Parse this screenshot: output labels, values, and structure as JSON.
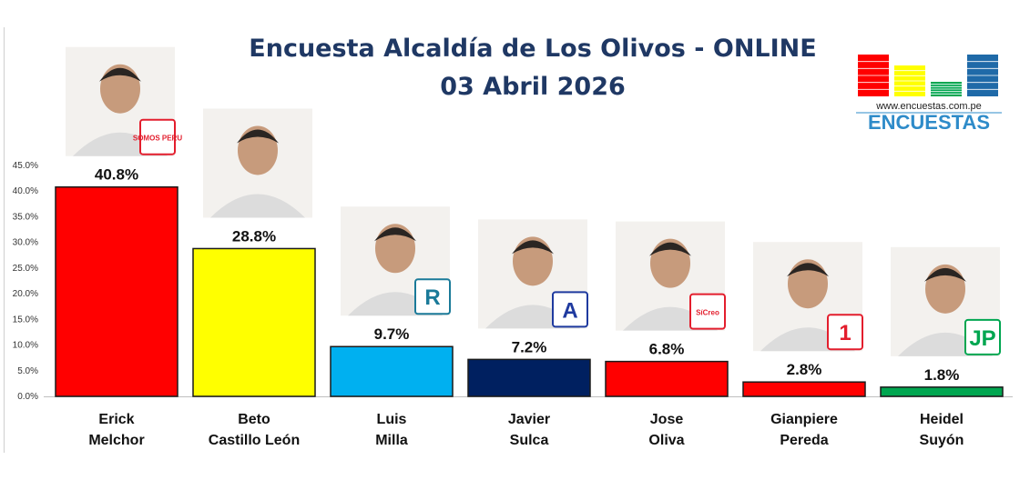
{
  "header": {
    "title": "Encuesta Alcaldía de Los Olivos - ONLINE",
    "subtitle": "03 Abril 2026"
  },
  "logo": {
    "url_text": "www.encuestas.com.pe",
    "brand": "ENCUESTAS",
    "bar_colors": [
      "#ff0000",
      "#ffff00",
      "#00a650",
      "#1f6aa8"
    ]
  },
  "chart_data": {
    "type": "bar",
    "title": "Encuesta Alcaldía de Los Olivos - ONLINE",
    "subtitle": "03 Abril 2026",
    "ylim": [
      0,
      45
    ],
    "yticks": [
      "0.0%",
      "5.0%",
      "10.0%",
      "15.0%",
      "20.0%",
      "25.0%",
      "30.0%",
      "35.0%",
      "40.0%",
      "45.0%"
    ],
    "grid": false,
    "categories": [
      [
        "Erick",
        "Melchor"
      ],
      [
        "Beto",
        "Castillo León"
      ],
      [
        "Luis",
        "Milla"
      ],
      [
        "Javier",
        "Sulca"
      ],
      [
        "Jose",
        "Oliva"
      ],
      [
        "Gianpiere",
        "Pereda"
      ],
      [
        "Heidel",
        "Suyón"
      ]
    ],
    "values": [
      40.8,
      28.8,
      9.7,
      7.2,
      6.8,
      2.8,
      1.8
    ],
    "data_labels": [
      "40.8%",
      "28.8%",
      "9.7%",
      "7.2%",
      "6.8%",
      "2.8%",
      "1.8%"
    ],
    "colors": [
      "#ff0000",
      "#ffff00",
      "#00b0f0",
      "#002060",
      "#ff0000",
      "#ff0000",
      "#00a650"
    ],
    "party_logos": [
      {
        "text": "SOMOS PERU",
        "color": "#e31e2d"
      },
      {
        "text": "",
        "color": ""
      },
      {
        "text": "R",
        "color": "#1a7a99"
      },
      {
        "text": "A",
        "color": "#1f3a9f"
      },
      {
        "text": "SíCreo",
        "color": "#e31e2d"
      },
      {
        "text": "1",
        "color": "#e31e2d"
      },
      {
        "text": "JP",
        "color": "#00a650"
      }
    ]
  }
}
